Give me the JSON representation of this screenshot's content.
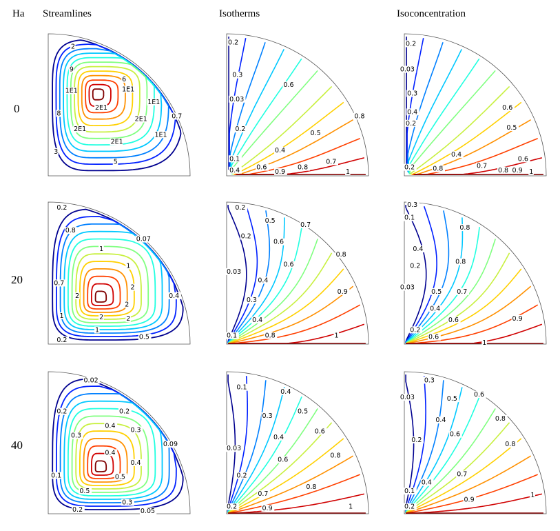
{
  "headers": {
    "ha": "Ha",
    "streamlines": "Streamlines",
    "isotherms": "Isotherms",
    "isoconcentration": "Isoconcentration"
  },
  "rows": [
    {
      "ha": "0",
      "streamlines": [
        "2",
        "9",
        "6",
        "1E1",
        "1E1",
        "1E1",
        "2E1",
        "8",
        "2E1",
        "0.7",
        "2E1",
        "1E1",
        "2E1",
        "3",
        "5"
      ],
      "isotherms": [
        "0.2",
        "0.3",
        "0.6",
        "0.03",
        "0.8",
        "0.2",
        "0.5",
        "0.4",
        "0.1",
        "0.7",
        "0.4",
        "0.6",
        "0.9",
        "0.8",
        "1"
      ],
      "isoconcentration": [
        "0.2",
        "0.03",
        "0.3",
        "0.6",
        "0.4",
        "0.2",
        "0.5",
        "0.4",
        "0.6",
        "0.2",
        "0.8",
        "0.7",
        "0.8",
        "0.9",
        "1"
      ]
    },
    {
      "ha": "20",
      "streamlines": [
        "0.2",
        "0.8",
        "0.07",
        "1",
        "1",
        "0.7",
        "2",
        "2",
        "2",
        "0.4",
        "1",
        "2",
        "2",
        "1",
        "0.2",
        "0.5"
      ],
      "isotherms": [
        "0.2",
        "0.5",
        "0.7",
        "0.2",
        "0.6",
        "0.8",
        "0.6",
        "0.03",
        "0.4",
        "0.9",
        "0.3",
        "0.4",
        "0.1",
        "0.8",
        "1"
      ],
      "isoconcentration": [
        "0.3",
        "0.1",
        "0.8",
        "0.4",
        "0.8",
        "0.2",
        "0.03",
        "0.5",
        "0.7",
        "0.4",
        "0.6",
        "0.9",
        "0.2",
        "0.6",
        "1"
      ]
    },
    {
      "ha": "40",
      "streamlines": [
        "0.02",
        "0.2",
        "0.2",
        "0.4",
        "0.3",
        "0.3",
        "0.09",
        "0.4",
        "0.4",
        "0.1",
        "0.5",
        "0.5",
        "0.3",
        "0.2",
        "0.05"
      ],
      "isotherms": [
        "0.1",
        "0.4",
        "0.5",
        "0.3",
        "0.6",
        "0.4",
        "0.03",
        "0.8",
        "0.6",
        "0.2",
        "0.8",
        "0.7",
        "0.2",
        "0.9",
        "1"
      ],
      "isoconcentration": [
        "0.3",
        "0.03",
        "0.5",
        "0.6",
        "0.4",
        "0.8",
        "0.6",
        "0.2",
        "0.8",
        "0.7",
        "0.4",
        "0.1",
        "0.9",
        "0.2",
        "1"
      ]
    }
  ],
  "colors": {
    "jet": [
      "#00008f",
      "#0020ff",
      "#0080ff",
      "#00c8ff",
      "#20ffe0",
      "#80ff80",
      "#c8f040",
      "#ffd000",
      "#ff9000",
      "#ff4000",
      "#d00000",
      "#800000"
    ]
  }
}
